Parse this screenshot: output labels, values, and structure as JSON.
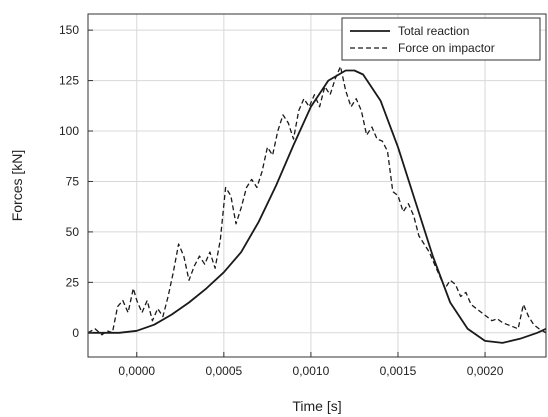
{
  "chart_data": {
    "type": "line",
    "xlabel": "Time [s]",
    "ylabel": "Forces [kN]",
    "xlim": [
      -0.00028,
      0.00235
    ],
    "ylim": [
      -12,
      158
    ],
    "grid": true,
    "legend_placement": "top-right",
    "x_ticks": [
      {
        "value": 0.0,
        "label": "0,0000"
      },
      {
        "value": 0.0005,
        "label": "0,0005"
      },
      {
        "value": 0.001,
        "label": "0,0010"
      },
      {
        "value": 0.0015,
        "label": "0,0015"
      },
      {
        "value": 0.002,
        "label": "0,0020"
      }
    ],
    "y_ticks": [
      {
        "value": 0,
        "label": "0"
      },
      {
        "value": 25,
        "label": "25"
      },
      {
        "value": 50,
        "label": "50"
      },
      {
        "value": 75,
        "label": "75"
      },
      {
        "value": 100,
        "label": "100"
      },
      {
        "value": 125,
        "label": "125"
      },
      {
        "value": 150,
        "label": "150"
      }
    ],
    "series": [
      {
        "name": "Total reaction",
        "style": "solid",
        "color": "#1a1a1a",
        "x": [
          -0.00028,
          -0.0002,
          -0.0001,
          0.0,
          0.0001,
          0.0002,
          0.0003,
          0.0004,
          0.0005,
          0.0006,
          0.0007,
          0.0008,
          0.0009,
          0.001,
          0.0011,
          0.0012,
          0.00125,
          0.0013,
          0.0014,
          0.0015,
          0.0016,
          0.0017,
          0.0018,
          0.0019,
          0.002,
          0.0021,
          0.0022,
          0.0023,
          0.00235
        ],
        "y": [
          0,
          0,
          0,
          1,
          4,
          9,
          15,
          22,
          30,
          40,
          55,
          73,
          93,
          112,
          125,
          130,
          130,
          128,
          115,
          92,
          65,
          38,
          15,
          2,
          -4,
          -5,
          -3,
          0,
          2
        ]
      },
      {
        "name": "Force on impactor",
        "style": "dashed",
        "color": "#1a1a1a",
        "x": [
          -0.00028,
          -0.00024,
          -0.0002,
          -0.00017,
          -0.00014,
          -0.00011,
          -8e-05,
          -5e-05,
          -2e-05,
          0.0,
          3e-05,
          6e-05,
          9e-05,
          0.00012,
          0.00015,
          0.00018,
          0.00021,
          0.00024,
          0.00027,
          0.0003,
          0.00033,
          0.00036,
          0.00039,
          0.00042,
          0.00045,
          0.00048,
          0.00051,
          0.00054,
          0.00057,
          0.0006,
          0.00063,
          0.00066,
          0.00069,
          0.00072,
          0.00075,
          0.00078,
          0.00081,
          0.00084,
          0.00087,
          0.0009,
          0.00093,
          0.00096,
          0.00099,
          0.00102,
          0.00105,
          0.00108,
          0.00111,
          0.00114,
          0.00117,
          0.0012,
          0.00123,
          0.00126,
          0.00129,
          0.00132,
          0.00135,
          0.00138,
          0.00141,
          0.00144,
          0.00147,
          0.0015,
          0.00153,
          0.00156,
          0.00159,
          0.00162,
          0.00165,
          0.00168,
          0.00171,
          0.00174,
          0.00177,
          0.0018,
          0.00183,
          0.00186,
          0.00189,
          0.00192,
          0.00195,
          0.00198,
          0.00201,
          0.00204,
          0.00207,
          0.0021,
          0.00213,
          0.00216,
          0.00219,
          0.00222,
          0.00225,
          0.00228,
          0.00231,
          0.00235
        ],
        "y": [
          0,
          2,
          -1,
          1,
          0,
          13,
          16,
          10,
          22,
          16,
          10,
          16,
          6,
          12,
          8,
          18,
          30,
          44,
          38,
          26,
          33,
          38,
          34,
          40,
          32,
          46,
          72,
          68,
          54,
          62,
          72,
          76,
          72,
          80,
          92,
          88,
          100,
          108,
          104,
          96,
          110,
          116,
          112,
          118,
          112,
          122,
          118,
          126,
          132,
          120,
          112,
          116,
          110,
          98,
          102,
          96,
          95,
          90,
          70,
          68,
          60,
          64,
          58,
          48,
          44,
          40,
          34,
          28,
          22,
          26,
          24,
          18,
          20,
          14,
          12,
          10,
          8,
          6,
          7,
          5,
          4,
          3,
          2,
          14,
          8,
          4,
          2,
          0
        ]
      }
    ]
  }
}
